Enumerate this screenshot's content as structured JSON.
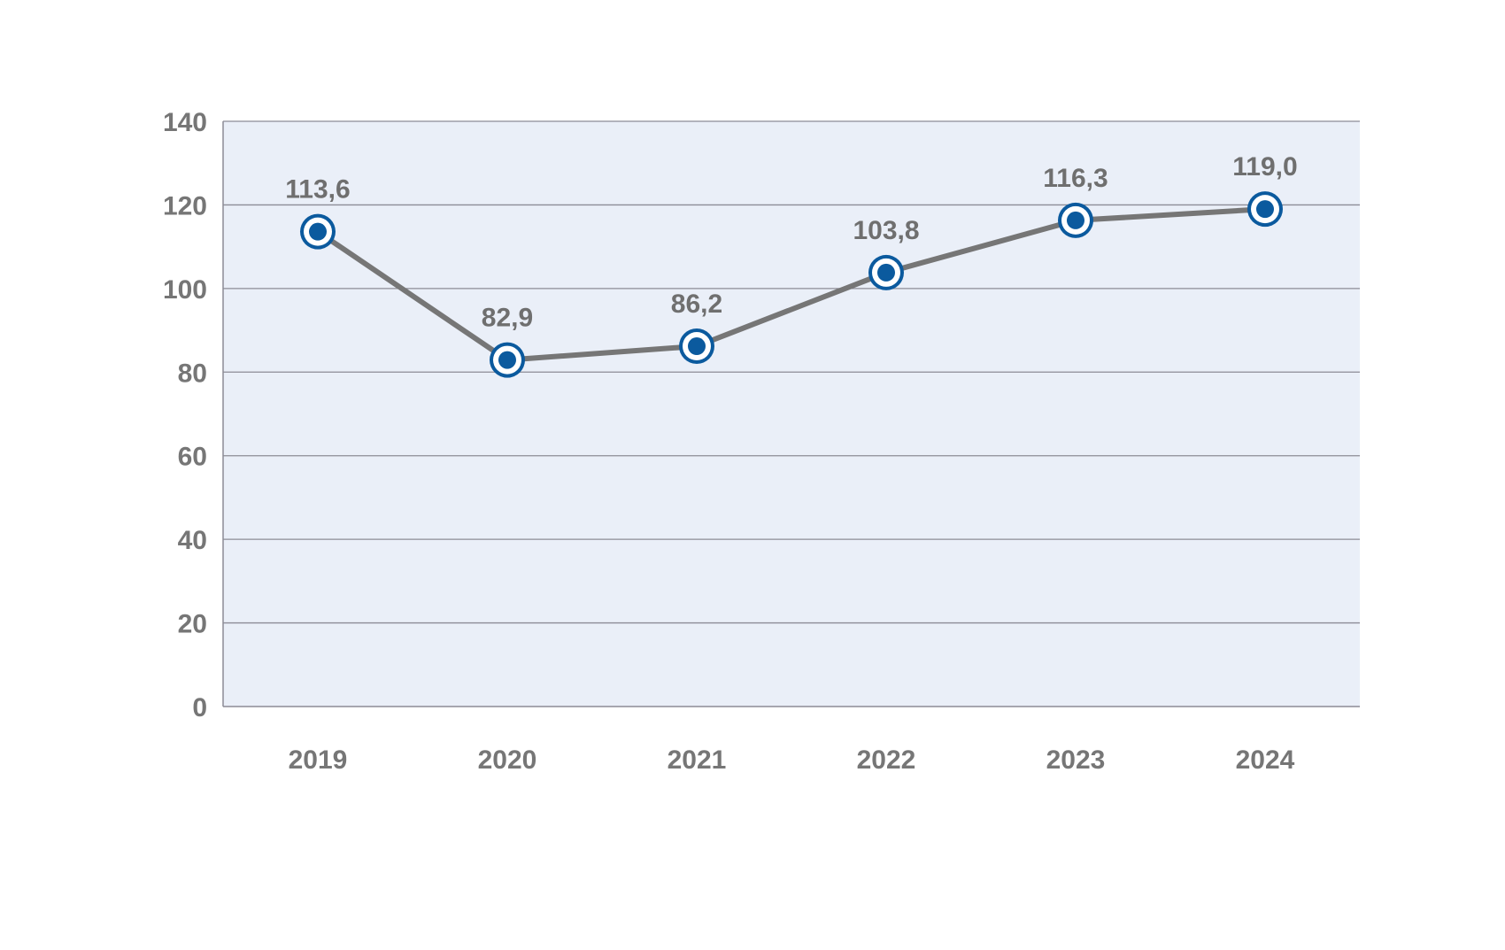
{
  "chart_data": {
    "type": "line",
    "categories": [
      "2019",
      "2020",
      "2021",
      "2022",
      "2023",
      "2024"
    ],
    "series": [
      {
        "values": [
          113.6,
          82.9,
          86.2,
          103.8,
          116.3,
          119.0
        ]
      }
    ],
    "data_labels": [
      "113,6",
      "82,9",
      "86,2",
      "103,8",
      "116,3",
      "119,0"
    ],
    "ylim": [
      0,
      140
    ],
    "yticks": [
      0,
      20,
      40,
      60,
      80,
      100,
      120,
      140
    ],
    "ytick_labels": [
      "0",
      "20",
      "40",
      "60",
      "80",
      "100",
      "120",
      "140"
    ],
    "title": "",
    "xlabel": "",
    "ylabel": "",
    "grid": true,
    "legend": "none",
    "colors": {
      "plot_background": "#eaeff8",
      "gridline": "#8c8c96",
      "line": "#767676",
      "marker_outer": "#0b5a9e",
      "marker_ring": "#ffffff",
      "marker_dot": "#0b5a9e",
      "text": "#767676"
    }
  }
}
